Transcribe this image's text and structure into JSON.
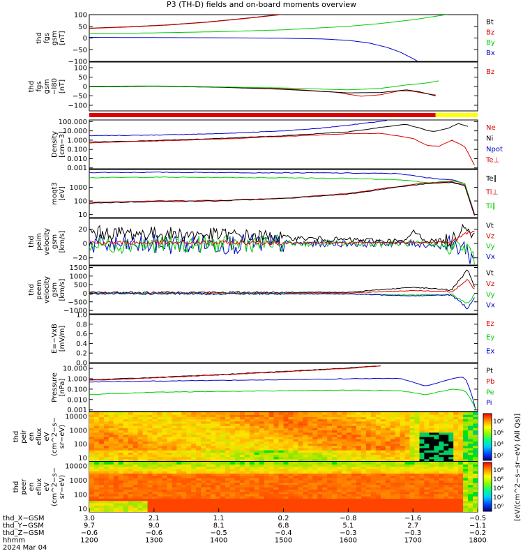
{
  "title": "P3 (TH-D) fields and on-board moments overview",
  "colors": {
    "black": "#000000",
    "red": "#dd0000",
    "green": "#00cc00",
    "blue": "#0000cc",
    "yellow": "#ffff00"
  },
  "chart_data": [
    {
      "id": "fgs_gsm",
      "type": "line",
      "ylabel": [
        "thd",
        "fgs",
        "gsm",
        "[nT]"
      ],
      "ylim": [
        -100,
        100
      ],
      "yticks": [
        "100",
        "50",
        "0",
        "−50",
        "−100"
      ],
      "ytick_values": [
        100,
        50,
        0,
        -50,
        -100
      ],
      "legend": [
        {
          "name": "Bt",
          "color": "black"
        },
        {
          "name": "Bz",
          "color": "red"
        },
        {
          "name": "By",
          "color": "green"
        },
        {
          "name": "Bx",
          "color": "blue"
        }
      ],
      "series": [
        {
          "name": "Bt",
          "color": "black",
          "x": [
            1200,
            1260,
            1320,
            1380,
            1440,
            1480,
            1520
          ],
          "y": [
            42,
            48,
            56,
            68,
            84,
            96,
            108
          ]
        },
        {
          "name": "Bz",
          "color": "red",
          "x": [
            1200,
            1260,
            1320,
            1380,
            1440,
            1480,
            1520
          ],
          "y": [
            41,
            47,
            55,
            67,
            83,
            95,
            107
          ]
        },
        {
          "name": "By",
          "color": "green",
          "x": [
            1200,
            1300,
            1400,
            1500,
            1600,
            1650,
            1700,
            1740,
            1760
          ],
          "y": [
            18,
            22,
            27,
            35,
            50,
            62,
            78,
            95,
            104
          ]
        },
        {
          "name": "Bx",
          "color": "blue",
          "x": [
            1200,
            1300,
            1400,
            1500,
            1560,
            1600,
            1630,
            1660,
            1680,
            1700,
            1710
          ],
          "y": [
            3,
            2,
            1,
            -1,
            -4,
            -10,
            -20,
            -40,
            -60,
            -88,
            -104
          ]
        }
      ]
    },
    {
      "id": "fgs_gsm_l80",
      "type": "line",
      "ylabel": [
        "thd",
        "fgs",
        "gsm",
        "−l80",
        "[nT]"
      ],
      "ylim": [
        -130,
        130
      ],
      "yticks": [
        "100",
        "50",
        "0",
        "−50",
        "−100"
      ],
      "ytick_values": [
        100,
        50,
        0,
        -50,
        -100
      ],
      "legend": [
        {
          "name": "Bz",
          "color": "red"
        }
      ],
      "series": [
        {
          "name": "Bz",
          "color": "red",
          "x": [
            1200,
            1300,
            1400,
            1500,
            1580,
            1620,
            1650,
            1680,
            1700,
            1720,
            1735
          ],
          "y": [
            0,
            2,
            -3,
            -12,
            -30,
            -52,
            -44,
            -22,
            -25,
            -38,
            -45
          ]
        },
        {
          "name": "black",
          "color": "black",
          "x": [
            1200,
            1300,
            1400,
            1500,
            1600,
            1650,
            1690,
            1710,
            1735
          ],
          "y": [
            -2,
            1,
            -4,
            -15,
            -34,
            -32,
            -18,
            -28,
            -50
          ]
        },
        {
          "name": "green",
          "color": "green",
          "x": [
            1200,
            1300,
            1400,
            1500,
            1600,
            1650,
            1690,
            1720,
            1740
          ],
          "y": [
            1,
            3,
            -2,
            -8,
            -18,
            -10,
            8,
            18,
            30
          ]
        }
      ]
    },
    {
      "id": "bar",
      "type": "bar_strip",
      "segments": [
        {
          "from": 1200,
          "to": 1735,
          "color": "red"
        },
        {
          "from": 1735,
          "to": 1800,
          "color": "yellow"
        }
      ]
    },
    {
      "id": "density",
      "type": "line",
      "yscale": "log",
      "ylabel": [
        "Density",
        "[cm−3]"
      ],
      "ylim": [
        0.0008,
        150
      ],
      "yticks": [
        "100.000",
        "10.000",
        "1.000",
        "0.100",
        "0.010",
        "0.001"
      ],
      "ytick_values": [
        100,
        10,
        1,
        0.1,
        0.01,
        0.001
      ],
      "legend": [
        {
          "name": "Ne",
          "color": "red"
        },
        {
          "name": "Ni",
          "color": "black"
        },
        {
          "name": "Npot",
          "color": "blue"
        },
        {
          "name": "Te⊥",
          "color": "red"
        }
      ],
      "series": [
        {
          "name": "Npot",
          "color": "blue",
          "x": [
            1200,
            1300,
            1400,
            1500,
            1560,
            1620,
            1660
          ],
          "y": [
            3,
            3.5,
            5,
            10,
            20,
            60,
            130
          ]
        },
        {
          "name": "Ni",
          "color": "black",
          "x": [
            1200,
            1300,
            1400,
            1500,
            1600,
            1660,
            1690,
            1710,
            1730,
            1755,
            1770,
            1785
          ],
          "y": [
            0.6,
            0.9,
            1.5,
            3,
            8,
            30,
            50,
            20,
            8,
            20,
            60,
            30
          ]
        },
        {
          "name": "Ne",
          "color": "red",
          "x": [
            1200,
            1300,
            1400,
            1500,
            1600,
            1650,
            1700,
            1720,
            1740,
            1760,
            1780,
            1795
          ],
          "y": [
            0.5,
            0.8,
            1.3,
            2.5,
            5,
            5.5,
            1.5,
            0.3,
            0.2,
            1,
            0.2,
            0.002
          ]
        }
      ]
    },
    {
      "id": "moqt3",
      "type": "line",
      "yscale": "log",
      "ylabel": [
        "moqt3",
        "[eV]"
      ],
      "ylim": [
        6,
        20000
      ],
      "yticks": [
        "1000",
        "100",
        "10"
      ],
      "ytick_values": [
        1000,
        100,
        10
      ],
      "legend": [
        {
          "name": "Te∥",
          "color": "black"
        },
        {
          "name": "Ti⊥",
          "color": "red"
        },
        {
          "name": "Ti∥",
          "color": "green"
        }
      ],
      "series": [
        {
          "name": "Te⊥",
          "color": "blue",
          "x": [
            1200,
            1300,
            1400,
            1500,
            1600,
            1680,
            1720,
            1760,
            1780,
            1795
          ],
          "y": [
            12000,
            12500,
            12000,
            11500,
            11000,
            10000,
            5000,
            3500,
            2000,
            12
          ]
        },
        {
          "name": "Ti∥",
          "color": "green",
          "x": [
            1200,
            1300,
            1400,
            1500,
            1600,
            1680,
            1720,
            1760,
            1780,
            1795
          ],
          "y": [
            5000,
            5500,
            5200,
            5000,
            4500,
            3500,
            2200,
            2800,
            2000,
            10
          ]
        },
        {
          "name": "Ti⊥",
          "color": "red",
          "x": [
            1200,
            1300,
            1400,
            1500,
            1600,
            1680,
            1720,
            1760,
            1780,
            1795
          ],
          "y": [
            80,
            100,
            110,
            160,
            350,
            1200,
            2000,
            2500,
            1500,
            10
          ]
        },
        {
          "name": "Te∥",
          "color": "black",
          "x": [
            1200,
            1300,
            1400,
            1500,
            1600,
            1680,
            1720,
            1760,
            1780,
            1795
          ],
          "y": [
            70,
            90,
            100,
            150,
            320,
            1100,
            1800,
            2300,
            1300,
            9
          ]
        }
      ]
    },
    {
      "id": "peim_velocity",
      "type": "line",
      "ylabel": [
        "thd",
        "peim",
        "velocity",
        "gsm",
        "[km/s]"
      ],
      "ylim": [
        -30,
        35
      ],
      "yticks": [
        "20",
        "0",
        "−20"
      ],
      "ytick_values": [
        20,
        0,
        -20
      ],
      "legend": [
        {
          "name": "Vt",
          "color": "black"
        },
        {
          "name": "Vz",
          "color": "red"
        },
        {
          "name": "Vy",
          "color": "green"
        },
        {
          "name": "Vx",
          "color": "blue"
        }
      ],
      "series": [
        {
          "name": "Vx",
          "color": "blue",
          "noise": 14,
          "x": [
            1200,
            1400,
            1500,
            1600,
            1700,
            1780,
            1795
          ],
          "y": [
            -2,
            -1,
            0,
            0,
            0,
            -5,
            -25
          ]
        },
        {
          "name": "Vy",
          "color": "green",
          "noise": 12,
          "x": [
            1200,
            1400,
            1500,
            1600,
            1700,
            1780,
            1795
          ],
          "y": [
            -2,
            -1,
            0,
            0,
            0,
            -5,
            -20
          ]
        },
        {
          "name": "Vt",
          "color": "black",
          "noise": 10,
          "x": [
            1200,
            1400,
            1500,
            1600,
            1690,
            1700,
            1720,
            1760,
            1780,
            1795
          ],
          "y": [
            15,
            12,
            8,
            5,
            3,
            18,
            4,
            3,
            30,
            10
          ]
        },
        {
          "name": "Vz",
          "color": "red",
          "noise": 3,
          "x": [
            1200,
            1400,
            1600,
            1760,
            1795
          ],
          "y": [
            1,
            1,
            1,
            2,
            20
          ]
        }
      ]
    },
    {
      "id": "peem_velocity",
      "type": "line",
      "ylabel": [
        "thd",
        "peem",
        "velocity",
        "gsm",
        "[km/s]"
      ],
      "ylim": [
        -1200,
        1600
      ],
      "yticks": [
        "1500",
        "1000",
        "500",
        "0",
        "−500",
        "−1000"
      ],
      "ytick_values": [
        1500,
        1000,
        500,
        0,
        -500,
        -1000
      ],
      "legend": [
        {
          "name": "Vt",
          "color": "black"
        },
        {
          "name": "Vz",
          "color": "red"
        },
        {
          "name": "Vy",
          "color": "green"
        },
        {
          "name": "Vx",
          "color": "blue"
        }
      ],
      "series": [
        {
          "name": "Vt",
          "color": "black",
          "noise": 60,
          "x": [
            1200,
            1600,
            1700,
            1760,
            1785,
            1795
          ],
          "y": [
            40,
            60,
            350,
            200,
            1400,
            300
          ]
        },
        {
          "name": "Vz",
          "color": "red",
          "noise": 60,
          "x": [
            1200,
            1600,
            1700,
            1760,
            1785,
            1795
          ],
          "y": [
            10,
            20,
            150,
            100,
            800,
            200
          ]
        },
        {
          "name": "Vy",
          "color": "green",
          "noise": 60,
          "x": [
            1200,
            1600,
            1700,
            1760,
            1785,
            1795
          ],
          "y": [
            -20,
            -30,
            -100,
            -80,
            -600,
            -100
          ]
        },
        {
          "name": "Vx",
          "color": "blue",
          "noise": 60,
          "x": [
            1200,
            1600,
            1700,
            1760,
            1785,
            1795
          ],
          "y": [
            -20,
            -40,
            -150,
            -100,
            -900,
            -200
          ]
        }
      ]
    },
    {
      "id": "efield",
      "type": "line",
      "ylabel": [
        "E=−VxB",
        "[mV/m]"
      ],
      "ylim": [
        0,
        1
      ],
      "yticks": [
        "1.0",
        "0.8",
        "0.6",
        "0.4",
        "0.2",
        "0.0"
      ],
      "ytick_values": [
        1,
        0.8,
        0.6,
        0.4,
        0.2,
        0
      ],
      "legend": [
        {
          "name": "Ez",
          "color": "red"
        },
        {
          "name": "Ey",
          "color": "green"
        },
        {
          "name": "Ex",
          "color": "blue"
        }
      ],
      "series": []
    },
    {
      "id": "pressure",
      "type": "line",
      "yscale": "log",
      "ylabel": [
        "Pressure",
        "[nPa]"
      ],
      "ylim": [
        0.0007,
        30
      ],
      "yticks": [
        "10.000",
        "1.000",
        "0.100",
        "0.010",
        "0.001"
      ],
      "ytick_values": [
        10,
        1,
        0.1,
        0.01,
        0.001
      ],
      "legend": [
        {
          "name": "Pt",
          "color": "black"
        },
        {
          "name": "Pb",
          "color": "red"
        },
        {
          "name": "Pe",
          "color": "green"
        },
        {
          "name": "Pi",
          "color": "blue"
        }
      ],
      "series": [
        {
          "name": "Pt",
          "color": "black",
          "x": [
            1200,
            1300,
            1400,
            1500,
            1600,
            1650
          ],
          "y": [
            0.8,
            1.3,
            2.5,
            5,
            11,
            18
          ]
        },
        {
          "name": "Pb",
          "color": "red",
          "x": [
            1200,
            1300,
            1400,
            1500,
            1600,
            1650
          ],
          "y": [
            0.7,
            1.2,
            2.3,
            4.6,
            10,
            17
          ]
        },
        {
          "name": "Pi",
          "color": "blue",
          "x": [
            1200,
            1300,
            1400,
            1500,
            1600,
            1680,
            1720,
            1760,
            1780,
            1790,
            1797
          ],
          "y": [
            0.5,
            0.6,
            0.7,
            0.8,
            1,
            1.1,
            0.2,
            1,
            1.5,
            0.05,
            0.001
          ]
        },
        {
          "name": "Pe",
          "color": "green",
          "x": [
            1200,
            1300,
            1400,
            1500,
            1600,
            1680,
            1720,
            1760,
            1780,
            1790,
            1797
          ],
          "y": [
            0.03,
            0.05,
            0.06,
            0.07,
            0.08,
            0.07,
            0.03,
            0.1,
            0.08,
            0.01,
            0.001
          ]
        }
      ]
    },
    {
      "id": "peir_spectrogram",
      "type": "heatmap",
      "yscale": "log",
      "ylabel": [
        "thd",
        "peir",
        "en",
        "eflux",
        "eV",
        "(cm^2−s−",
        "sr−eV)"
      ],
      "ylim": [
        6,
        20000
      ],
      "yticks": [
        "10000",
        "1000",
        "100",
        "10"
      ],
      "ytick_values": [
        10000,
        1000,
        100,
        10
      ]
    },
    {
      "id": "peer_spectrogram",
      "type": "heatmap",
      "yscale": "log",
      "ylabel": [
        "thd",
        "peer",
        "en",
        "eflux",
        "eV",
        "(cm^2−s−",
        "sr−eV)"
      ],
      "ylim": [
        6,
        20000
      ],
      "yticks": [
        "10000",
        "1000",
        "100",
        "10"
      ],
      "ytick_values": [
        10000,
        1000,
        100,
        10
      ]
    }
  ],
  "colorbar": {
    "label": "[eV/(cm^2−s−sr−eV) (All Qs)]",
    "upper_ticks": [
      "10⁸",
      "10⁶",
      "10⁴",
      "10²"
    ],
    "lower_ticks": [
      "10⁸",
      "10⁶",
      "10⁴",
      "10²",
      "10⁰"
    ]
  },
  "xaxis": {
    "range": [
      1200,
      1800
    ],
    "rows": [
      {
        "label": "thd_X−GSM",
        "values": [
          "3.0",
          "2.1",
          "1.1",
          "0.2",
          "−0.8",
          "−1.6",
          "−0.5"
        ]
      },
      {
        "label": "thd_Y−GSM",
        "values": [
          "9.7",
          "9.0",
          "8.1",
          "6.8",
          "5.1",
          "2.7",
          "−1.1"
        ]
      },
      {
        "label": "thd_Z−GSM",
        "values": [
          "−0.6",
          "−0.6",
          "−0.5",
          "−0.4",
          "−0.3",
          "−0.3",
          "−0.2"
        ]
      },
      {
        "label": "hhmm",
        "values": [
          "1200",
          "1300",
          "1400",
          "1500",
          "1600",
          "1700",
          "1800"
        ]
      }
    ],
    "date": "2024 Mar 04"
  }
}
